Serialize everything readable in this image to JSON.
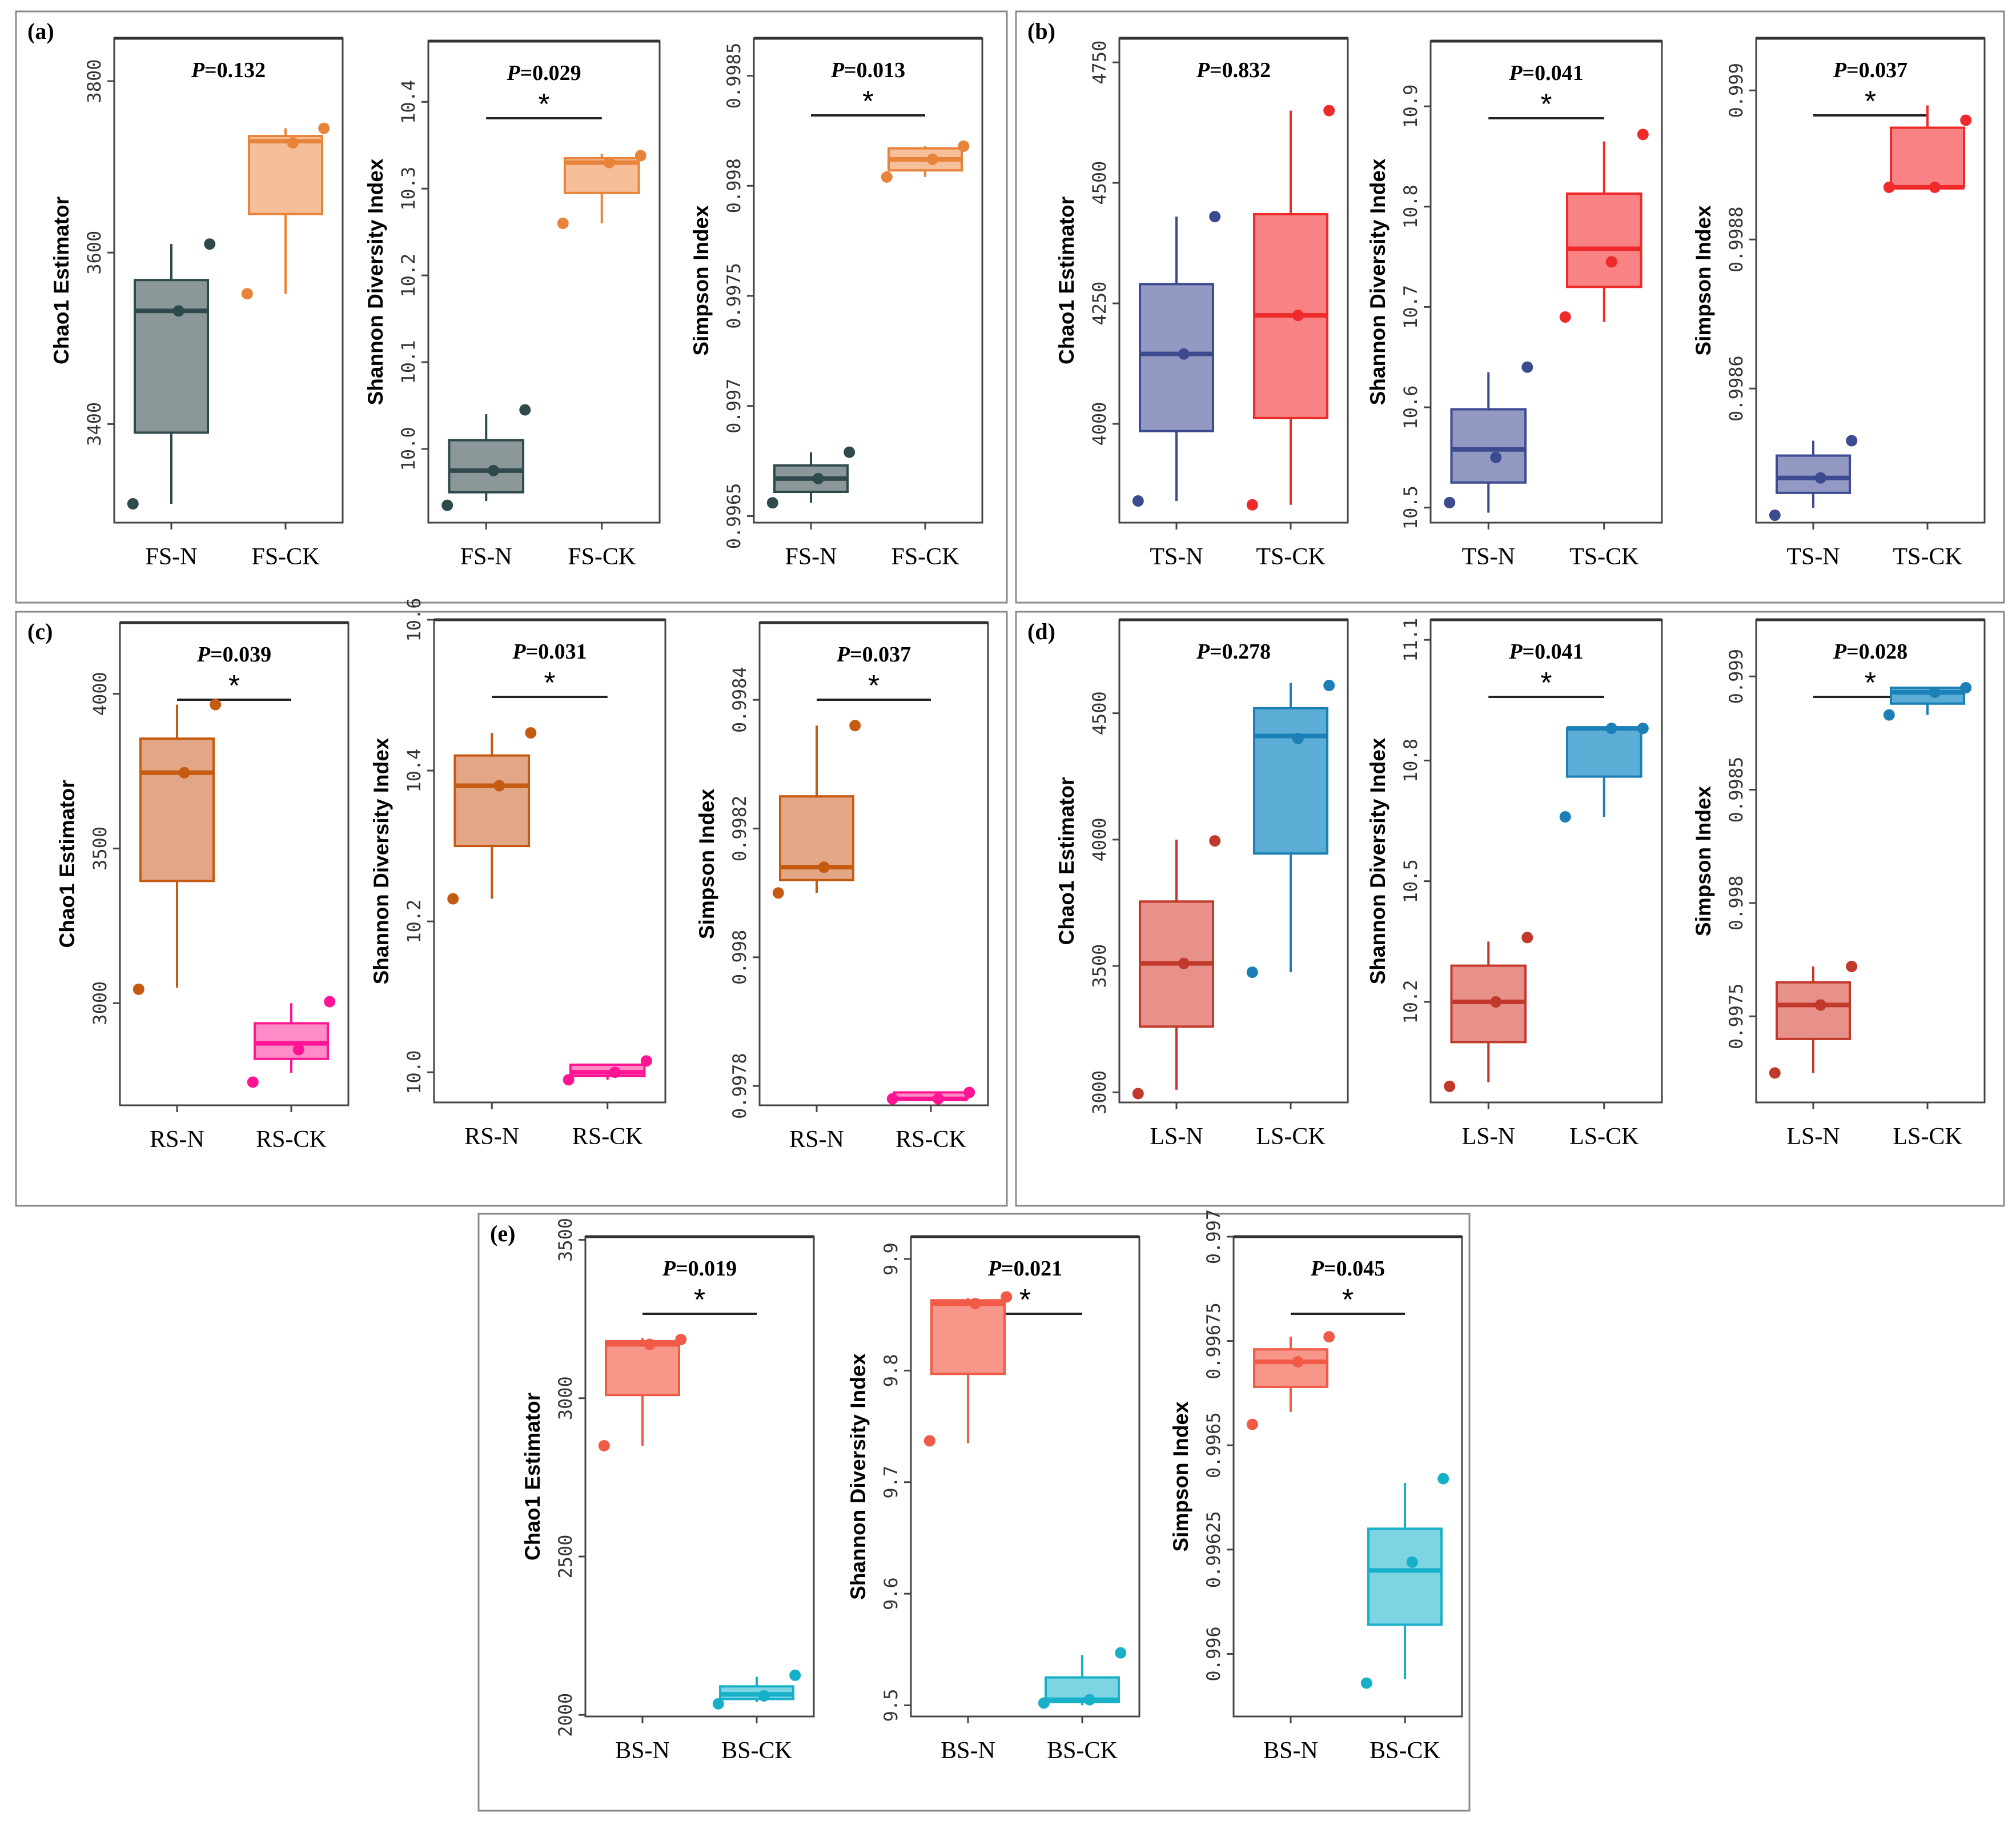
{
  "chart_data": [
    {
      "panel": "(a)",
      "plots": [
        {
          "type": "box",
          "title_prefix": "P",
          "title_value": "=0.132",
          "significance": "",
          "ylabel": "Chao1 Estimator",
          "ylim": [
            3285,
            3850
          ],
          "yticks": [
            3400,
            3600,
            3800
          ],
          "groups": [
            {
              "name": "FS-N",
              "color": "#2f4a4d",
              "fill": "#8c9799",
              "min": 3307,
              "q1": 3390,
              "median": 3532,
              "q3": 3568,
              "max": 3610,
              "points": [
                3307,
                3532,
                3610
              ]
            },
            {
              "name": "FS-CK",
              "color": "#e8833a",
              "fill": "#f6bf9a",
              "min": 3552,
              "q1": 3645,
              "median": 3730,
              "q3": 3736,
              "max": 3745,
              "points": [
                3552,
                3728,
                3745
              ]
            }
          ]
        },
        {
          "type": "box",
          "title_prefix": "P",
          "title_value": "=0.029",
          "significance": "*",
          "ylabel": "Shannon Diversity Index",
          "ylim": [
            9.915,
            10.47
          ],
          "yticks": [
            10.0,
            10.1,
            10.2,
            10.3,
            10.4
          ],
          "groups": [
            {
              "name": "FS-N",
              "color": "#2f4a4d",
              "fill": "#8c9799",
              "min": 9.94,
              "q1": 9.95,
              "median": 9.975,
              "q3": 10.01,
              "max": 10.04,
              "points": [
                9.935,
                9.975,
                10.045
              ]
            },
            {
              "name": "FS-CK",
              "color": "#e8833a",
              "fill": "#f6bf9a",
              "min": 10.26,
              "q1": 10.295,
              "median": 10.33,
              "q3": 10.335,
              "max": 10.34,
              "points": [
                10.26,
                10.33,
                10.338
              ]
            }
          ]
        },
        {
          "type": "box",
          "title_prefix": "P",
          "title_value": "=0.013",
          "significance": "*",
          "ylabel": "Simpson Index",
          "ylim": [
            0.99647,
            0.99867
          ],
          "yticks": [
            0.9965,
            0.997,
            0.9975,
            0.998,
            0.9985
          ],
          "groups": [
            {
              "name": "FS-N",
              "color": "#2f4a4d",
              "fill": "#8c9799",
              "min": 0.99656,
              "q1": 0.99661,
              "median": 0.99667,
              "q3": 0.99673,
              "max": 0.99679,
              "points": [
                0.99656,
                0.99667,
                0.99679
              ]
            },
            {
              "name": "FS-CK",
              "color": "#e8833a",
              "fill": "#f6bf9a",
              "min": 0.99804,
              "q1": 0.99807,
              "median": 0.99812,
              "q3": 0.99817,
              "max": 0.99818,
              "points": [
                0.99804,
                0.99812,
                0.99818
              ]
            }
          ]
        }
      ]
    },
    {
      "panel": "(b)",
      "plots": [
        {
          "type": "box",
          "title_prefix": "P",
          "title_value": "=0.832",
          "significance": "",
          "ylabel": "Chao1 Estimator",
          "ylim": [
            3795,
            4800
          ],
          "yticks": [
            4000,
            4250,
            4500,
            4750
          ],
          "groups": [
            {
              "name": "TS-N",
              "color": "#3c4a8f",
              "fill": "#9499c4",
              "min": 3840,
              "q1": 3985,
              "median": 4145,
              "q3": 4290,
              "max": 4430,
              "points": [
                3840,
                4145,
                4430
              ]
            },
            {
              "name": "TS-CK",
              "color": "#ee2a2a",
              "fill": "#f98384",
              "min": 3832,
              "q1": 4012,
              "median": 4225,
              "q3": 4435,
              "max": 4650,
              "points": [
                3832,
                4225,
                4650
              ]
            }
          ]
        },
        {
          "type": "box",
          "title_prefix": "P",
          "title_value": "=0.041",
          "significance": "*",
          "ylabel": "Shannon Diversity Index",
          "ylim": [
            10.485,
            10.965
          ],
          "yticks": [
            10.5,
            10.6,
            10.7,
            10.8,
            10.9
          ],
          "groups": [
            {
              "name": "TS-N",
              "color": "#3c4a8f",
              "fill": "#9499c4",
              "min": 10.495,
              "q1": 10.525,
              "median": 10.558,
              "q3": 10.598,
              "max": 10.635,
              "points": [
                10.505,
                10.55,
                10.64
              ]
            },
            {
              "name": "TS-CK",
              "color": "#ee2a2a",
              "fill": "#f98384",
              "min": 10.685,
              "q1": 10.72,
              "median": 10.758,
              "q3": 10.813,
              "max": 10.865,
              "points": [
                10.69,
                10.745,
                10.872
              ]
            }
          ]
        },
        {
          "type": "box",
          "title_prefix": "P",
          "title_value": "=0.037",
          "significance": "*",
          "ylabel": "Simpson Index",
          "ylim": [
            0.99842,
            0.99907
          ],
          "yticks": [
            0.9986,
            0.9988,
            0.999
          ],
          "groups": [
            {
              "name": "TS-N",
              "color": "#3c4a8f",
              "fill": "#9499c4",
              "min": 0.99844,
              "q1": 0.99846,
              "median": 0.99848,
              "q3": 0.99851,
              "max": 0.99853,
              "points": [
                0.99843,
                0.99848,
                0.99853
              ]
            },
            {
              "name": "TS-CK",
              "color": "#ee2a2a",
              "fill": "#f98384",
              "min": 0.99887,
              "q1": 0.99887,
              "median": 0.99887,
              "q3": 0.99895,
              "max": 0.99898,
              "points": [
                0.99887,
                0.99887,
                0.99896
              ]
            }
          ]
        }
      ]
    },
    {
      "panel": "(c)",
      "plots": [
        {
          "type": "box",
          "title_prefix": "P",
          "title_value": "=0.039",
          "significance": "*",
          "ylabel": "Chao1 Estimator",
          "ylim": [
            2670,
            4230
          ],
          "yticks": [
            3000,
            3500,
            4000
          ],
          "groups": [
            {
              "name": "RS-N",
              "color": "#c55a11",
              "fill": "#e3a787",
              "min": 3050,
              "q1": 3395,
              "median": 3745,
              "q3": 3855,
              "max": 3965,
              "points": [
                3045,
                3745,
                3965
              ]
            },
            {
              "name": "RS-CK",
              "color": "#ff1493",
              "fill": "#ff8cc6",
              "min": 2775,
              "q1": 2820,
              "median": 2870,
              "q3": 2935,
              "max": 3000,
              "points": [
                2745,
                2850,
                3005
              ]
            }
          ]
        },
        {
          "type": "box",
          "title_prefix": "P",
          "title_value": "=0.031",
          "significance": "*",
          "ylabel": "Shannon Diversity Index",
          "ylim": [
            9.96,
            10.6
          ],
          "yticks": [
            10.0,
            10.2,
            10.4,
            10.6
          ],
          "groups": [
            {
              "name": "RS-N",
              "color": "#c55a11",
              "fill": "#e3a787",
              "min": 10.23,
              "q1": 10.3,
              "median": 10.38,
              "q3": 10.42,
              "max": 10.45,
              "points": [
                10.23,
                10.38,
                10.45
              ]
            },
            {
              "name": "RS-CK",
              "color": "#ff1493",
              "fill": "#ff8cc6",
              "min": 9.99,
              "q1": 9.995,
              "median": 10.0,
              "q3": 10.01,
              "max": 10.01,
              "points": [
                9.99,
                10.0,
                10.015
              ]
            }
          ]
        },
        {
          "type": "box",
          "title_prefix": "P",
          "title_value": "=0.037",
          "significance": "*",
          "ylabel": "Simpson Index",
          "ylim": [
            0.99777,
            0.99852
          ],
          "yticks": [
            0.9978,
            0.998,
            0.9982,
            0.9984
          ],
          "groups": [
            {
              "name": "RS-N",
              "color": "#c55a11",
              "fill": "#e3a787",
              "min": 0.9981,
              "q1": 0.99812,
              "median": 0.99814,
              "q3": 0.99825,
              "max": 0.99836,
              "points": [
                0.9981,
                0.99814,
                0.99836
              ]
            },
            {
              "name": "RS-CK",
              "color": "#ff1493",
              "fill": "#ff8cc6",
              "min": 0.99778,
              "q1": 0.99778,
              "median": 0.99778,
              "q3": 0.99779,
              "max": 0.99779,
              "points": [
                0.99778,
                0.99778,
                0.99779
              ]
            }
          ]
        }
      ]
    },
    {
      "panel": "(d)",
      "plots": [
        {
          "type": "box",
          "title_prefix": "P",
          "title_value": "=0.278",
          "significance": "",
          "ylabel": "Chao1 Estimator",
          "ylim": [
            2960,
            4870
          ],
          "yticks": [
            3000,
            3500,
            4000,
            4500
          ],
          "groups": [
            {
              "name": "LS-N",
              "color": "#c0392b",
              "fill": "#e8908a",
              "min": 3010,
              "q1": 3260,
              "median": 3510,
              "q3": 3755,
              "max": 4000,
              "points": [
                2995,
                3510,
                3995
              ]
            },
            {
              "name": "LS-CK",
              "color": "#1a80b6",
              "fill": "#5badd6",
              "min": 3475,
              "q1": 3945,
              "median": 4410,
              "q3": 4520,
              "max": 4620,
              "points": [
                3475,
                4400,
                4610
              ]
            }
          ]
        },
        {
          "type": "box",
          "title_prefix": "P",
          "title_value": "=0.041",
          "significance": "*",
          "ylabel": "Shannon Diversity Index",
          "ylim": [
            9.95,
            11.15
          ],
          "yticks": [
            10.2,
            10.5,
            10.8,
            11.1
          ],
          "groups": [
            {
              "name": "LS-N",
              "color": "#c0392b",
              "fill": "#e8908a",
              "min": 10.0,
              "q1": 10.1,
              "median": 10.2,
              "q3": 10.29,
              "max": 10.35,
              "points": [
                9.99,
                10.2,
                10.36
              ]
            },
            {
              "name": "LS-CK",
              "color": "#1a80b6",
              "fill": "#5badd6",
              "min": 10.66,
              "q1": 10.76,
              "median": 10.88,
              "q3": 10.88,
              "max": 10.88,
              "points": [
                10.66,
                10.88,
                10.88
              ]
            }
          ]
        },
        {
          "type": "box",
          "title_prefix": "P",
          "title_value": "=0.028",
          "significance": "*",
          "ylabel": "Simpson Index",
          "ylim": [
            0.99712,
            0.99925
          ],
          "yticks": [
            0.9975,
            0.998,
            0.9985,
            0.999
          ],
          "groups": [
            {
              "name": "LS-N",
              "color": "#c0392b",
              "fill": "#e8908a",
              "min": 0.99725,
              "q1": 0.9974,
              "median": 0.99755,
              "q3": 0.99765,
              "max": 0.99772,
              "points": [
                0.99725,
                0.99755,
                0.99772
              ]
            },
            {
              "name": "LS-CK",
              "color": "#1a80b6",
              "fill": "#5badd6",
              "min": 0.99883,
              "q1": 0.99888,
              "median": 0.99893,
              "q3": 0.99895,
              "max": 0.99895,
              "points": [
                0.99883,
                0.99893,
                0.99895
              ]
            }
          ]
        }
      ]
    },
    {
      "panel": "(e)",
      "plots": [
        {
          "type": "box",
          "title_prefix": "P",
          "title_value": "=0.019",
          "significance": "*",
          "ylabel": "Chao1 Estimator",
          "ylim": [
            1995,
            3510
          ],
          "yticks": [
            2000,
            2500,
            3000,
            3500
          ],
          "groups": [
            {
              "name": "BS-N",
              "color": "#f05a46",
              "fill": "#f7978a",
              "min": 2850,
              "q1": 3010,
              "median": 3170,
              "q3": 3180,
              "max": 3190,
              "points": [
                2850,
                3170,
                3185
              ]
            },
            {
              "name": "BS-CK",
              "color": "#17b0c9",
              "fill": "#7dd4e2",
              "min": 2040,
              "q1": 2050,
              "median": 2065,
              "q3": 2090,
              "max": 2120,
              "points": [
                2035,
                2060,
                2125
              ]
            }
          ]
        },
        {
          "type": "box",
          "title_prefix": "P",
          "title_value": "=0.021",
          "significance": "*",
          "ylabel": "Shannon Diversity Index",
          "ylim": [
            9.49,
            9.92
          ],
          "yticks": [
            9.5,
            9.6,
            9.7,
            9.8,
            9.9
          ],
          "groups": [
            {
              "name": "BS-N",
              "color": "#f05a46",
              "fill": "#f7978a",
              "min": 9.735,
              "q1": 9.797,
              "median": 9.86,
              "q3": 9.863,
              "max": 9.865,
              "points": [
                9.737,
                9.86,
                9.866
              ]
            },
            {
              "name": "BS-CK",
              "color": "#17b0c9",
              "fill": "#7dd4e2",
              "min": 9.5,
              "q1": 9.503,
              "median": 9.505,
              "q3": 9.525,
              "max": 9.545,
              "points": [
                9.502,
                9.505,
                9.547
              ]
            }
          ]
        },
        {
          "type": "box",
          "title_prefix": "P",
          "title_value": "=0.045",
          "significance": "*",
          "ylabel": "Simpson Index",
          "ylim": [
            0.99585,
            0.997
          ],
          "yticks": [
            0.996,
            0.99625,
            0.9965,
            0.99675,
            0.997
          ],
          "groups": [
            {
              "name": "BS-N",
              "color": "#f05a46",
              "fill": "#f7978a",
              "min": 0.99658,
              "q1": 0.99664,
              "median": 0.9967,
              "q3": 0.99673,
              "max": 0.99676,
              "points": [
                0.99655,
                0.9967,
                0.99676
              ]
            },
            {
              "name": "BS-CK",
              "color": "#17b0c9",
              "fill": "#7dd4e2",
              "min": 0.99594,
              "q1": 0.99607,
              "median": 0.9962,
              "q3": 0.9963,
              "max": 0.99641,
              "points": [
                0.99593,
                0.99622,
                0.99642
              ]
            }
          ]
        }
      ]
    }
  ]
}
